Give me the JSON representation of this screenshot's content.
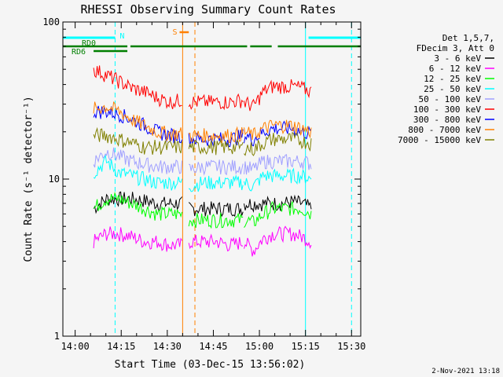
{
  "chart_data": {
    "type": "line",
    "title": "RHESSI Observing Summary Count Rates",
    "xlabel": "Start Time (03-Dec-15 13:56:02)",
    "ylabel": "Count Rate (s⁻¹ detector⁻¹)",
    "yscale": "log",
    "ylim": [
      1,
      100
    ],
    "xlim": [
      "13:56",
      "15:33"
    ],
    "x_ticks": [
      "14:00",
      "14:15",
      "14:30",
      "14:45",
      "15:00",
      "15:15",
      "15:30"
    ],
    "y_ticks": [
      "1",
      "10",
      "100"
    ],
    "legend_header": [
      "Det 1,5,7,",
      "FDecim 3, Att 0"
    ],
    "legend_placement": "right",
    "grid": false,
    "timestamp": "2-Nov-2021 13:18",
    "annotations": {
      "flags": [
        {
          "label": "N",
          "color": "#00ffff",
          "start": "13:56",
          "end": "14:13"
        },
        {
          "label": "N",
          "color": "#00ffff",
          "start": "15:16",
          "end": "15:33"
        },
        {
          "label": "RD0",
          "color": "#007f00",
          "start": "13:56",
          "end": "14:17"
        },
        {
          "label": "RD0",
          "color": "#007f00",
          "start": "14:18",
          "end": "14:56"
        },
        {
          "label": "RD0",
          "color": "#007f00",
          "start": "14:57",
          "end": "15:04"
        },
        {
          "label": "RD0",
          "color": "#007f00",
          "start": "15:06",
          "end": "15:33"
        },
        {
          "label": "RD6",
          "color": "#007f00",
          "start": "14:06",
          "end": "14:17"
        },
        {
          "label": "S",
          "color": "#ff8000",
          "start": "14:34",
          "end": "14:37"
        }
      ],
      "vlines": [
        {
          "time": "13:56",
          "color": "#00ffff",
          "style": "solid"
        },
        {
          "time": "14:13",
          "color": "#00ffff",
          "style": "dashed"
        },
        {
          "time": "15:15",
          "color": "#00ffff",
          "style": "solid"
        },
        {
          "time": "15:30",
          "color": "#00ffff",
          "style": "dashed"
        },
        {
          "time": "14:35",
          "color": "#ff8000",
          "style": "solid"
        },
        {
          "time": "14:39",
          "color": "#ff8000",
          "style": "dashed"
        }
      ]
    },
    "segments": [
      [
        "14:06",
        "14:35"
      ],
      [
        "14:37",
        "14:55"
      ],
      [
        "14:55",
        "15:17"
      ]
    ],
    "series": [
      {
        "name": "3 - 6 keV",
        "color": "#000000",
        "values": [
          [
            6.5,
            7.5,
            7.5,
            7.5,
            7.3,
            7,
            7,
            7
          ],
          [
            6.5,
            6.5,
            6.5,
            6.5,
            6.5
          ],
          [
            7,
            7,
            7,
            7,
            7,
            7.2,
            7,
            6.5
          ]
        ]
      },
      {
        "name": "6 - 12 keV",
        "color": "#ff00ff",
        "values": [
          [
            4,
            4.5,
            4.5,
            4.3,
            4,
            4,
            3.8,
            3.8
          ],
          [
            4,
            4,
            4,
            3.8,
            4
          ],
          [
            4,
            3.5,
            4.2,
            4.5,
            4.5,
            4.5,
            4.3,
            4
          ]
        ]
      },
      {
        "name": "12 - 25 keV",
        "color": "#00ff00",
        "values": [
          [
            6.5,
            7.5,
            7.5,
            7,
            6.5,
            6,
            6,
            6
          ],
          [
            5.5,
            5.5,
            5.5,
            5.5,
            5.5
          ],
          [
            5.5,
            5.3,
            6,
            6.5,
            6.5,
            6.5,
            6.5,
            6
          ]
        ]
      },
      {
        "name": "25 - 50 keV",
        "color": "#00ffff",
        "values": [
          [
            11,
            13,
            11,
            10.5,
            10,
            9.5,
            9.5,
            9.5
          ],
          [
            9,
            9.5,
            9.5,
            9.5,
            9.5
          ],
          [
            9.5,
            9,
            10.5,
            10.5,
            10.5,
            10.5,
            10.5,
            10
          ]
        ]
      },
      {
        "name": "50 - 100 keV",
        "color": "#a0a0ff",
        "values": [
          [
            13,
            15,
            14,
            13,
            12.5,
            12,
            12,
            12
          ],
          [
            11.5,
            12,
            12,
            12,
            12
          ],
          [
            12,
            11.5,
            13,
            13,
            13,
            13,
            13,
            12.5
          ]
        ]
      },
      {
        "name": "100 - 300 keV",
        "color": "#ff0000",
        "values": [
          [
            50,
            46,
            42,
            38,
            36,
            33,
            31,
            32
          ],
          [
            31,
            31,
            31,
            31,
            32
          ],
          [
            31,
            29,
            36,
            39,
            39,
            39,
            38,
            36
          ]
        ]
      },
      {
        "name": "300 - 800 keV",
        "color": "#0000ff",
        "values": [
          [
            27,
            27,
            26,
            24,
            22,
            20,
            19,
            19
          ],
          [
            18,
            18,
            18,
            18,
            19
          ],
          [
            19,
            18,
            20,
            21,
            21,
            21,
            20,
            19.5
          ]
        ]
      },
      {
        "name": "800 - 7000 keV",
        "color": "#ff8000",
        "values": [
          [
            28,
            29,
            27,
            24,
            22,
            20,
            19.5,
            19.5
          ],
          [
            19,
            19,
            19,
            19,
            19.5
          ],
          [
            20,
            19,
            21,
            22,
            22,
            22,
            21,
            20
          ]
        ]
      },
      {
        "name": "7000 - 15000 keV",
        "color": "#808000",
        "values": [
          [
            19,
            19,
            18,
            17,
            16,
            16,
            16,
            16
          ],
          [
            16,
            16,
            16,
            16,
            16
          ],
          [
            16,
            15.5,
            17,
            18,
            18,
            18,
            17.5,
            17
          ]
        ]
      }
    ]
  }
}
